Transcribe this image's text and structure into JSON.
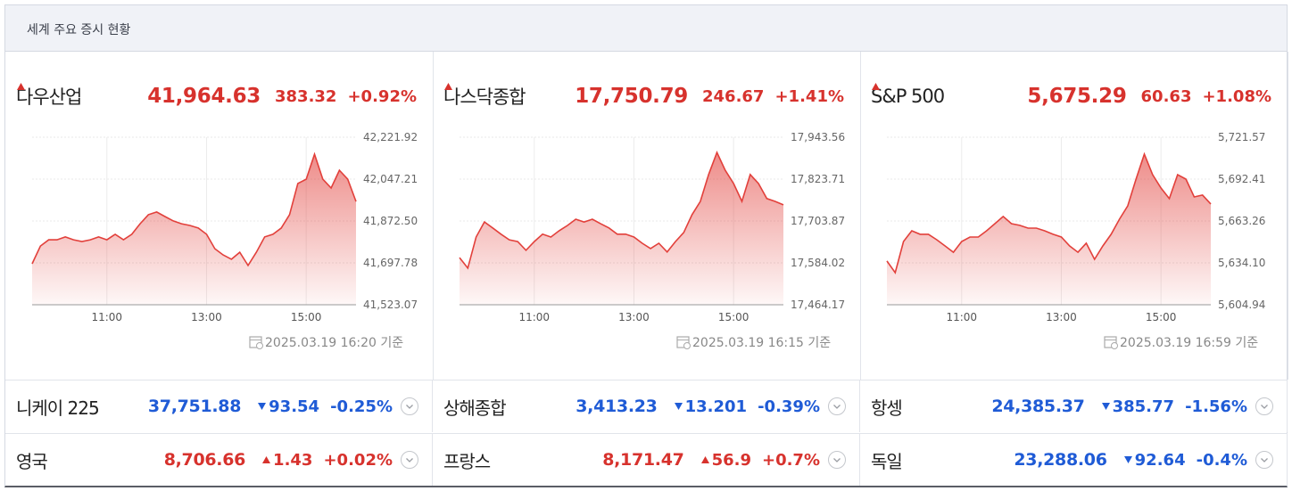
{
  "header": {
    "title": "세계 주요 증시 현황"
  },
  "main_indices": [
    {
      "name": "다우산업",
      "price": "41,964.63",
      "change": "383.32",
      "change_pct": "+0.92%",
      "direction": "up",
      "timestamp": "2025.03.19 16:20 기준"
    },
    {
      "name": "나스닥종합",
      "price": "17,750.79",
      "change": "246.67",
      "change_pct": "+1.41%",
      "direction": "up",
      "timestamp": "2025.03.19 16:15 기준"
    },
    {
      "name": "S&P 500",
      "price": "5,675.29",
      "change": "60.63",
      "change_pct": "+1.08%",
      "direction": "up",
      "timestamp": "2025.03.19 16:59 기준"
    }
  ],
  "chart_data": [
    {
      "type": "area",
      "color": "#e2403b",
      "grid": true,
      "x": [
        "09:30",
        "09:40",
        "09:50",
        "10:00",
        "10:10",
        "10:20",
        "10:30",
        "10:40",
        "10:50",
        "11:00",
        "11:10",
        "11:20",
        "11:30",
        "11:40",
        "11:50",
        "12:00",
        "12:10",
        "12:20",
        "12:30",
        "12:40",
        "12:50",
        "13:00",
        "13:10",
        "13:20",
        "13:30",
        "13:40",
        "13:50",
        "14:00",
        "14:10",
        "14:20",
        "14:30",
        "14:40",
        "14:50",
        "15:00",
        "15:10",
        "15:20",
        "15:30",
        "15:40",
        "15:50",
        "16:00"
      ],
      "values": [
        41694,
        41768,
        41794,
        41794,
        41806,
        41794,
        41787,
        41794,
        41806,
        41794,
        41817,
        41794,
        41817,
        41861,
        41899,
        41910,
        41891,
        41873,
        41861,
        41854,
        41843,
        41817,
        41757,
        41731,
        41713,
        41742,
        41687,
        41742,
        41806,
        41817,
        41843,
        41899,
        42029,
        42047,
        42151,
        42047,
        42010,
        42084,
        42047,
        41954
      ],
      "ylim": [
        41523.07,
        42221.92
      ],
      "yticks": [
        {
          "value": 42221.92,
          "label": "42,221.92"
        },
        {
          "value": 42047.21,
          "label": "42,047.21"
        },
        {
          "value": 41872.5,
          "label": "41,872.50"
        },
        {
          "value": 41697.78,
          "label": "41,697.78"
        },
        {
          "value": 41523.07,
          "label": "41,523.07"
        }
      ],
      "xticks": [
        "11:00",
        "13:00",
        "15:00"
      ]
    },
    {
      "type": "area",
      "color": "#e2403b",
      "grid": true,
      "x": [
        "09:30",
        "09:40",
        "09:50",
        "10:00",
        "10:10",
        "10:20",
        "10:30",
        "10:40",
        "10:50",
        "11:00",
        "11:10",
        "11:20",
        "11:30",
        "11:40",
        "11:50",
        "12:00",
        "12:10",
        "12:20",
        "12:30",
        "12:40",
        "12:50",
        "13:00",
        "13:10",
        "13:20",
        "13:30",
        "13:40",
        "13:50",
        "14:00",
        "14:10",
        "14:20",
        "14:30",
        "14:40",
        "14:50",
        "15:00",
        "15:10",
        "15:20",
        "15:30",
        "15:40",
        "15:50",
        "16:00"
      ],
      "values": [
        17599,
        17569,
        17658,
        17701,
        17684,
        17666,
        17650,
        17645,
        17620,
        17645,
        17666,
        17658,
        17676,
        17691,
        17709,
        17701,
        17709,
        17696,
        17684,
        17666,
        17666,
        17658,
        17640,
        17625,
        17640,
        17615,
        17645,
        17671,
        17722,
        17760,
        17837,
        17900,
        17849,
        17811,
        17760,
        17837,
        17811,
        17768,
        17760,
        17750
      ],
      "ylim": [
        17464.17,
        17943.56
      ],
      "yticks": [
        {
          "value": 17943.56,
          "label": "17,943.56"
        },
        {
          "value": 17823.71,
          "label": "17,823.71"
        },
        {
          "value": 17703.87,
          "label": "17,703.87"
        },
        {
          "value": 17584.02,
          "label": "17,584.02"
        },
        {
          "value": 17464.17,
          "label": "17,464.17"
        }
      ],
      "xticks": [
        "11:00",
        "13:00",
        "15:00"
      ]
    },
    {
      "type": "area",
      "color": "#e2403b",
      "grid": true,
      "x": [
        "09:30",
        "09:40",
        "09:50",
        "10:00",
        "10:10",
        "10:20",
        "10:30",
        "10:40",
        "10:50",
        "11:00",
        "11:10",
        "11:20",
        "11:30",
        "11:40",
        "11:50",
        "12:00",
        "12:10",
        "12:20",
        "12:30",
        "12:40",
        "12:50",
        "13:00",
        "13:10",
        "13:20",
        "13:30",
        "13:40",
        "13:50",
        "14:00",
        "14:10",
        "14:20",
        "14:30",
        "14:40",
        "14:50",
        "15:00",
        "15:10",
        "15:20",
        "15:30",
        "15:40",
        "15:50",
        "16:00"
      ],
      "values": [
        5635.4,
        5627.3,
        5649.0,
        5656.4,
        5654.0,
        5654.0,
        5650.2,
        5645.9,
        5641.5,
        5649.0,
        5652.1,
        5652.1,
        5656.4,
        5661.4,
        5666.4,
        5661.4,
        5660.2,
        5658.3,
        5658.3,
        5656.4,
        5654.0,
        5652.1,
        5645.9,
        5641.5,
        5647.8,
        5636.6,
        5645.9,
        5654.0,
        5664.5,
        5673.8,
        5692.4,
        5709.8,
        5695.5,
        5686.2,
        5678.8,
        5695.5,
        5692.4,
        5680.0,
        5681.3,
        5675.1
      ],
      "ylim": [
        5604.94,
        5721.57
      ],
      "yticks": [
        {
          "value": 5721.57,
          "label": "5,721.57"
        },
        {
          "value": 5692.41,
          "label": "5,692.41"
        },
        {
          "value": 5663.26,
          "label": "5,663.26"
        },
        {
          "value": 5634.1,
          "label": "5,634.10"
        },
        {
          "value": 5604.94,
          "label": "5,604.94"
        }
      ],
      "xticks": [
        "11:00",
        "13:00",
        "15:00"
      ]
    }
  ],
  "other_indices": [
    {
      "name": "니케이 225",
      "price": "37,751.88",
      "change": "93.54",
      "change_pct": "-0.25%",
      "direction": "down"
    },
    {
      "name": "상해종합",
      "price": "3,413.23",
      "change": "13.201",
      "change_pct": "-0.39%",
      "direction": "down"
    },
    {
      "name": "항셍",
      "price": "24,385.37",
      "change": "385.77",
      "change_pct": "-1.56%",
      "direction": "down"
    },
    {
      "name": "영국",
      "price": "8,706.66",
      "change": "1.43",
      "change_pct": "+0.02%",
      "direction": "up"
    },
    {
      "name": "프랑스",
      "price": "8,171.47",
      "change": "56.9",
      "change_pct": "+0.7%",
      "direction": "up"
    },
    {
      "name": "독일",
      "price": "23,288.06",
      "change": "92.64",
      "change_pct": "-0.4%",
      "direction": "down"
    }
  ]
}
